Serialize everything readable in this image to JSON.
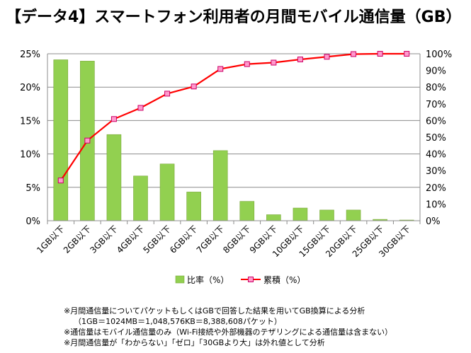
{
  "title": "【データ4】スマートフォン利用者の月間モバイル通信量（GB）",
  "chart_data": {
    "type": "bar",
    "categories": [
      "1GB以下",
      "2GB以下",
      "3GB以下",
      "4GB以下",
      "5GB以下",
      "6GB以下",
      "7GB以下",
      "8GB以下",
      "9GB以下",
      "10GB以下",
      "15GB以下",
      "20GB以下",
      "25GB以下",
      "30GB以下"
    ],
    "series": [
      {
        "name": "比率（%）",
        "kind": "bar",
        "axis": "left",
        "color": "#92d050",
        "values": [
          24.1,
          23.9,
          12.9,
          6.7,
          8.5,
          4.3,
          10.5,
          2.9,
          0.9,
          1.9,
          1.6,
          1.6,
          0.2,
          0.1
        ]
      },
      {
        "name": "累積（%）",
        "kind": "line",
        "axis": "right",
        "color": "#ff0000",
        "marker_color": "#ff99cc",
        "values": [
          24.1,
          48.0,
          60.9,
          67.6,
          76.1,
          80.4,
          90.9,
          93.8,
          94.7,
          96.6,
          98.2,
          99.8,
          100.0,
          100.0
        ]
      }
    ],
    "y_left": {
      "ticks": [
        "0%",
        "5%",
        "10%",
        "15%",
        "20%",
        "25%"
      ],
      "range": [
        0,
        25
      ]
    },
    "y_right": {
      "ticks": [
        "0%",
        "10%",
        "20%",
        "30%",
        "40%",
        "50%",
        "60%",
        "70%",
        "80%",
        "90%",
        "100%"
      ],
      "range": [
        0,
        100
      ]
    },
    "grid": true,
    "legend": "bottom"
  },
  "notes": [
    "※月間通信量についてパケットもしくはGBで回答した結果を用いてGB換算による分析",
    "（1GB＝1024MB＝1,048,576KB＝8,388,608パケット）",
    "※通信量はモバイル通信量のみ（Wi-Fi接続や外部機器のテザリングによる通信量は含まない）",
    "※月間通信量が「わからない」「ゼロ」「30GBより大」は外れ値として分析"
  ]
}
